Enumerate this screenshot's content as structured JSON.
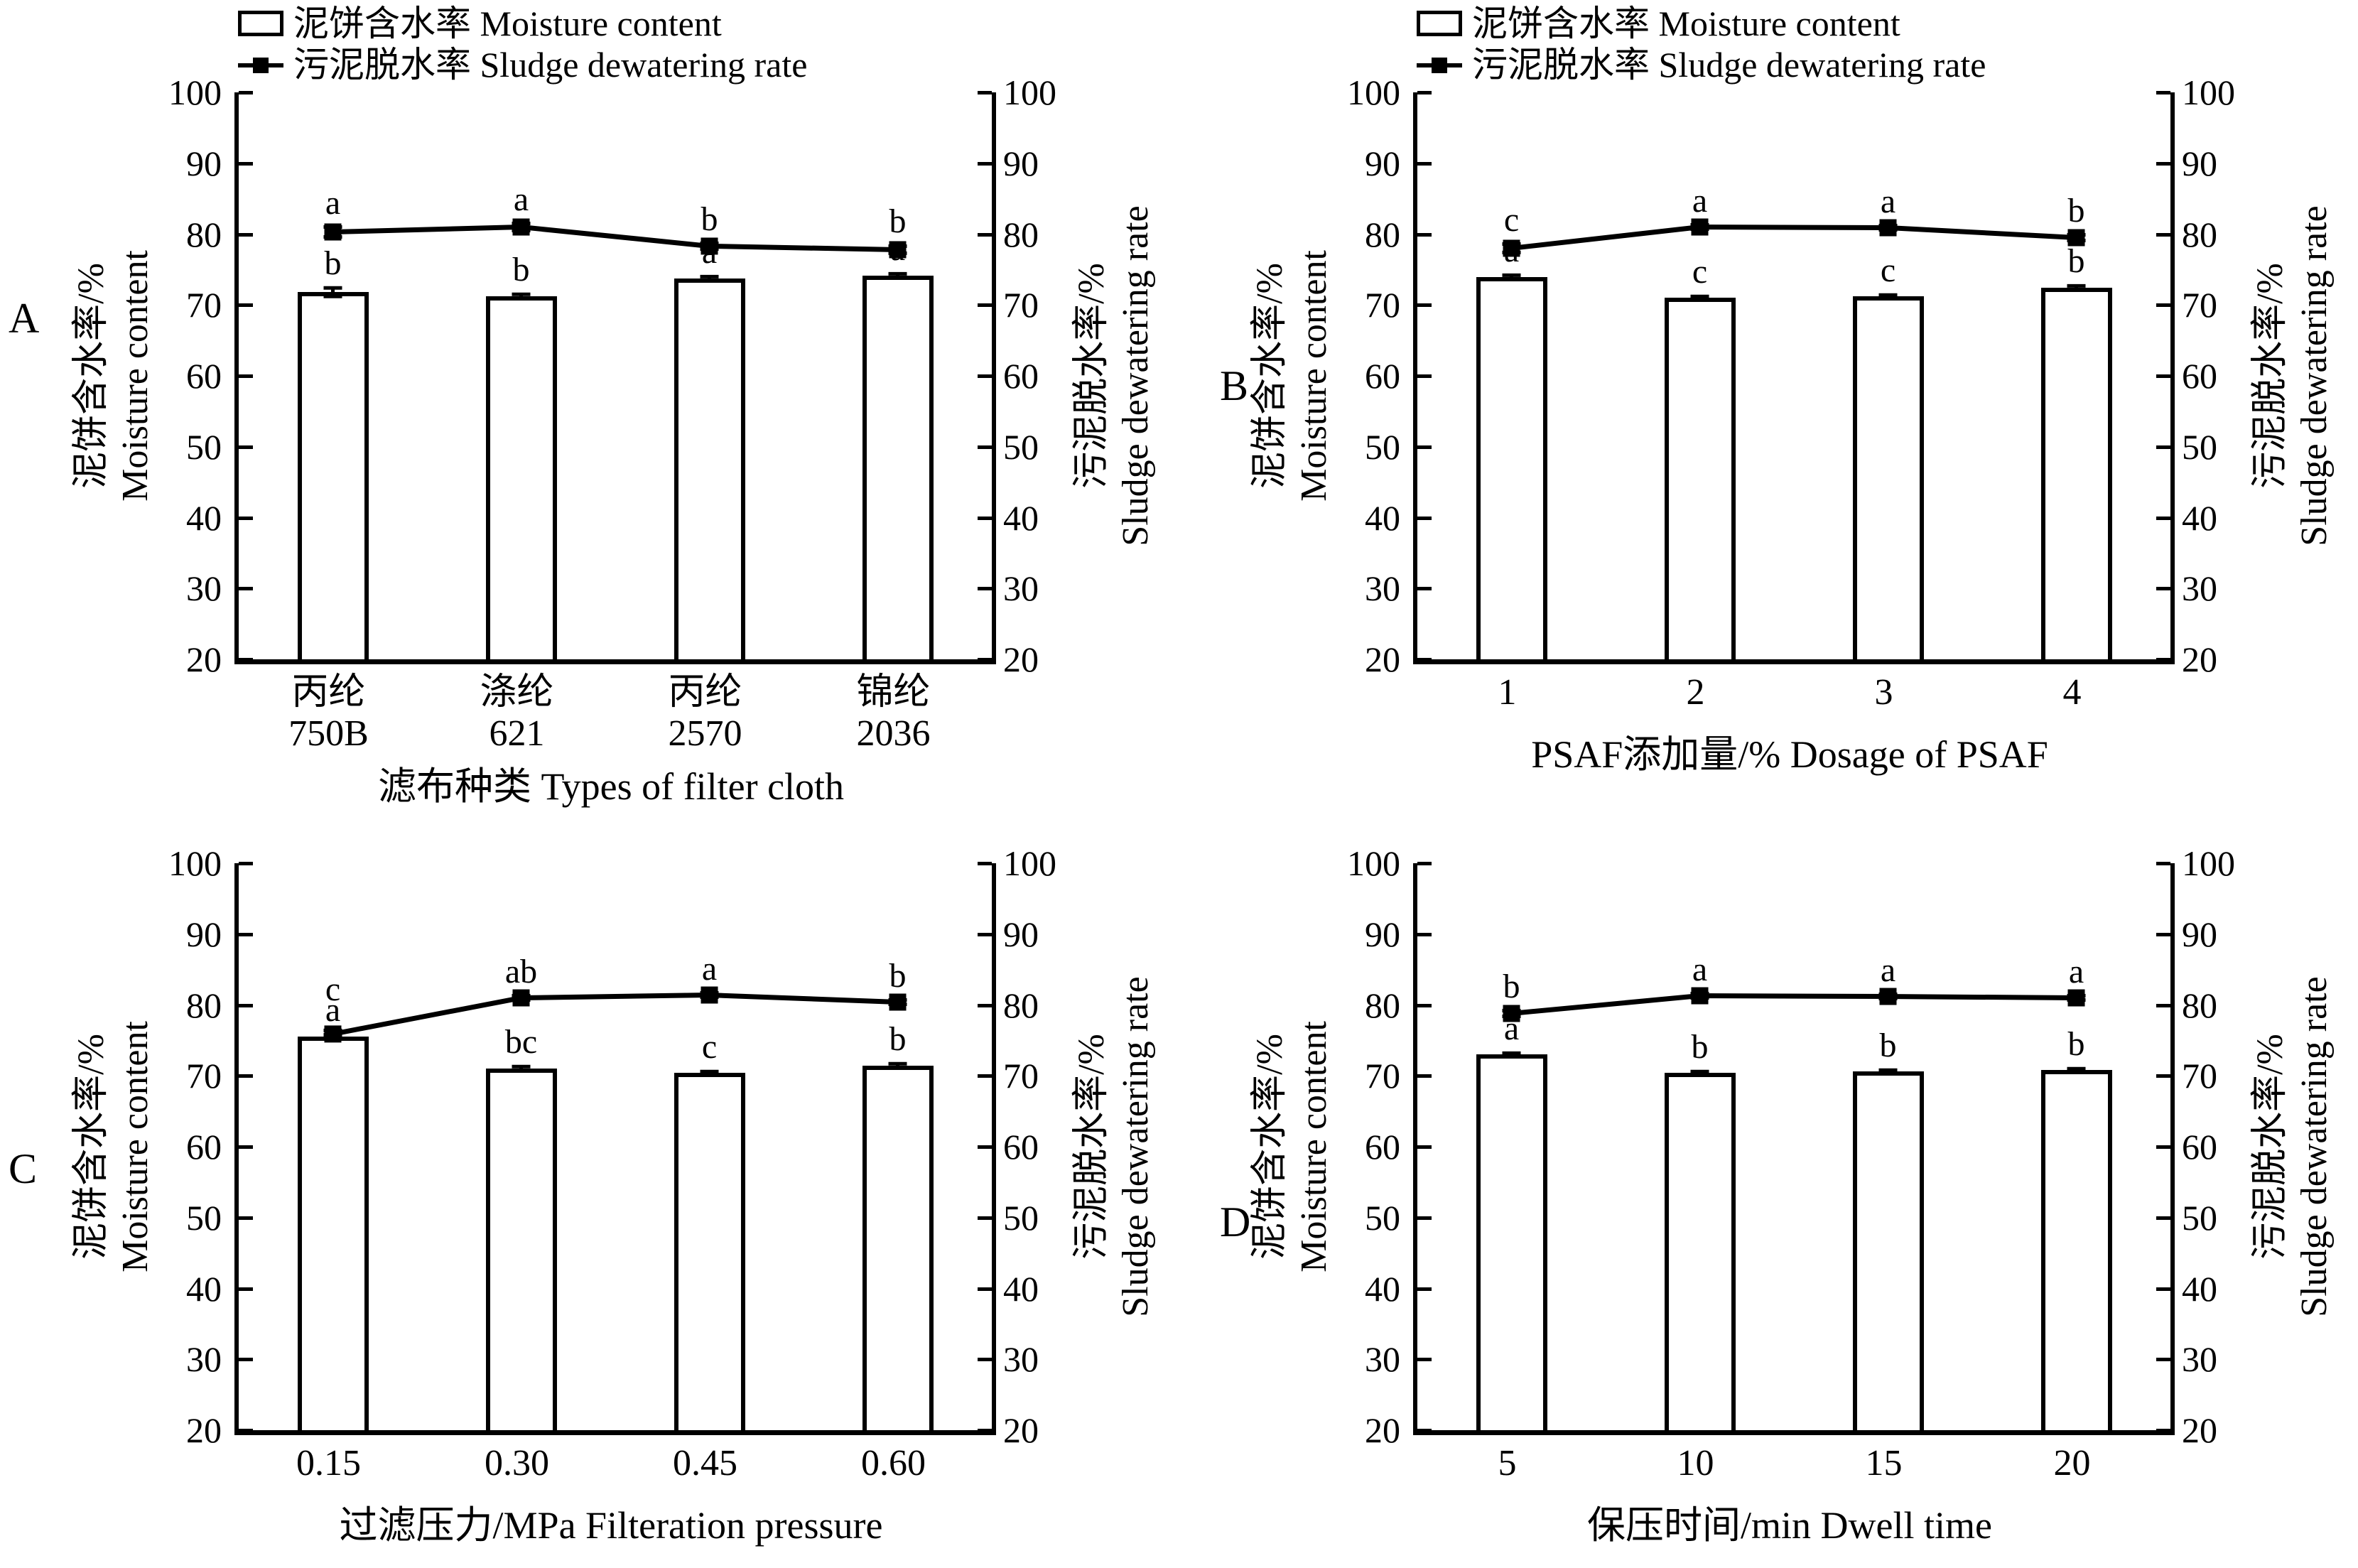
{
  "colors": {
    "stroke": "#000000",
    "fill": "#ffffff"
  },
  "legend": {
    "bar_label": "泥饼含水率 Moisture content",
    "line_label": "污泥脱水率 Sludge dewatering rate"
  },
  "axes": {
    "y_left_title_zh": "泥饼含水率/%",
    "y_left_title_en": "Moisture content",
    "y_right_title_zh": "污泥脱水率/%",
    "y_right_title_en": "Sludge dewatering rate",
    "y_ticks": [
      100,
      90,
      80,
      70,
      60,
      50,
      40,
      30,
      20
    ],
    "y_min": 20,
    "y_max": 100
  },
  "chart_data": [
    {
      "panel": "A",
      "type": "bar+line",
      "x_title": "滤布种类 Types of filter cloth",
      "categories": [
        [
          "丙纶",
          "750B"
        ],
        [
          "涤纶",
          "621"
        ],
        [
          "丙纶",
          "2570"
        ],
        [
          "锦纶",
          "2036"
        ]
      ],
      "series": [
        {
          "name": "泥饼含水率 Moisture content",
          "type": "bar",
          "values": [
            71.8,
            71.2,
            73.7,
            74.1
          ],
          "err": [
            0.6,
            0.3,
            0.3,
            0.3
          ],
          "letters": [
            "b",
            "b",
            "a",
            "a"
          ]
        },
        {
          "name": "污泥脱水率 Sludge dewatering rate",
          "type": "line",
          "values": [
            80.3,
            81.0,
            78.3,
            77.8
          ],
          "err": [
            0.7,
            0.5,
            0.4,
            0.5
          ],
          "letters": [
            "a",
            "a",
            "b",
            "b"
          ]
        }
      ]
    },
    {
      "panel": "B",
      "type": "bar+line",
      "x_title": "PSAF添加量/% Dosage of PSAF",
      "categories": [
        [
          "1"
        ],
        [
          "2"
        ],
        [
          "3"
        ],
        [
          "4"
        ]
      ],
      "series": [
        {
          "name": "泥饼含水率 Moisture content",
          "type": "bar",
          "values": [
            73.9,
            71.0,
            71.2,
            72.4
          ],
          "err": [
            0.3,
            0.2,
            0.2,
            0.3
          ],
          "letters": [
            "a",
            "c",
            "c",
            "b"
          ]
        },
        {
          "name": "污泥脱水率 Sludge dewatering rate",
          "type": "line",
          "values": [
            78.0,
            81.0,
            80.9,
            79.5
          ],
          "err": [
            0.6,
            0.3,
            0.3,
            0.4
          ],
          "letters": [
            "c",
            "a",
            "a",
            "b"
          ]
        }
      ]
    },
    {
      "panel": "C",
      "type": "bar+line",
      "x_title": "过滤压力/MPa Filteration pressure",
      "categories": [
        [
          "0.15"
        ],
        [
          "0.30"
        ],
        [
          "0.45"
        ],
        [
          "0.60"
        ]
      ],
      "series": [
        {
          "name": "泥饼含水率 Moisture content",
          "type": "bar",
          "values": [
            75.5,
            71.0,
            70.4,
            71.4
          ],
          "err": [
            0.3,
            0.3,
            0.2,
            0.3
          ],
          "letters": [
            "a",
            "bc",
            "c",
            "b"
          ]
        },
        {
          "name": "污泥脱水率 Sludge dewatering rate",
          "type": "line",
          "values": [
            75.9,
            81.0,
            81.4,
            80.4
          ],
          "err": [
            0.5,
            0.3,
            0.3,
            0.3
          ],
          "letters": [
            "c",
            "ab",
            "a",
            "b"
          ]
        }
      ]
    },
    {
      "panel": "D",
      "type": "bar+line",
      "x_title": "保压时间/min Dwell time",
      "categories": [
        [
          "5"
        ],
        [
          "10"
        ],
        [
          "15"
        ],
        [
          "20"
        ]
      ],
      "series": [
        {
          "name": "泥饼含水率 Moisture content",
          "type": "bar",
          "values": [
            73.0,
            70.4,
            70.6,
            70.8
          ],
          "err": [
            0.2,
            0.2,
            0.2,
            0.2
          ],
          "letters": [
            "a",
            "b",
            "b",
            "b"
          ]
        },
        {
          "name": "污泥脱水率 Sludge dewatering rate",
          "type": "line",
          "values": [
            78.8,
            81.3,
            81.2,
            81.0
          ],
          "err": [
            0.4,
            0.3,
            0.3,
            0.3
          ],
          "letters": [
            "b",
            "a",
            "a",
            "a"
          ]
        }
      ]
    }
  ]
}
